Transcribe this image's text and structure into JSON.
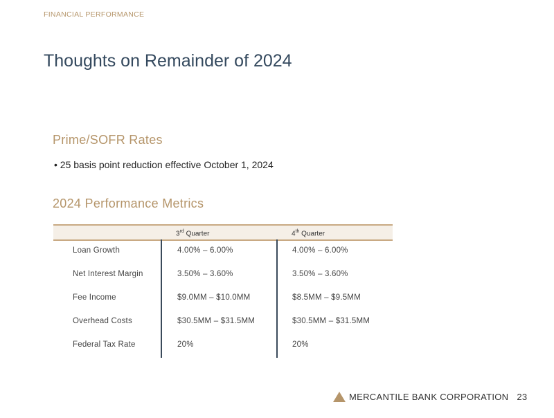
{
  "section_label": "FINANCIAL PERFORMANCE",
  "title": "Thoughts on Remainder of 2024",
  "prime": {
    "heading": "Prime/SOFR Rates",
    "bullets": [
      "25 basis point reduction effective October 1, 2024"
    ]
  },
  "metrics": {
    "heading": "2024 Performance Metrics",
    "columns": [
      {
        "num": "3",
        "sup": "rd",
        "label": " Quarter"
      },
      {
        "num": "4",
        "sup": "th",
        "label": " Quarter"
      }
    ],
    "rows": [
      {
        "label": "Loan Growth",
        "q3": "4.00% – 6.00%",
        "q4": "4.00% – 6.00%"
      },
      {
        "label": "Net Interest Margin",
        "q3": "3.50% – 3.60%",
        "q4": "3.50% – 3.60%"
      },
      {
        "label": "Fee Income",
        "q3": "$9.0MM – $10.0MM",
        "q4": "$8.5MM – $9.5MM"
      },
      {
        "label": "Overhead Costs",
        "q3": "$30.5MM – $31.5MM",
        "q4": "$30.5MM – $31.5MM"
      },
      {
        "label": "Federal Tax Rate",
        "q3": "20%",
        "q4": "20%"
      }
    ]
  },
  "footer": {
    "company": "MERCANTILE BANK CORPORATION",
    "page": "23"
  },
  "colors": {
    "accent": "#b5956a",
    "title": "#34495e"
  }
}
